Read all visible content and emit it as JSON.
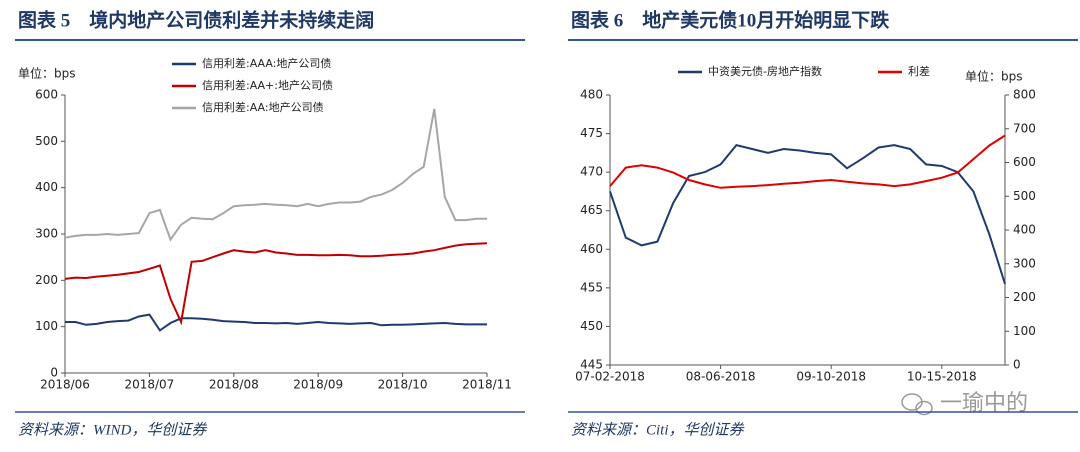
{
  "chart_data": [
    {
      "type": "line",
      "title": "图表 5　境内地产公司债利差并未持续走阔",
      "ylabel": "单位：bps",
      "source": "资料来源：WIND，华创证券",
      "categories": [
        "2018/06",
        null,
        null,
        null,
        null,
        null,
        null,
        null,
        "2018/07",
        null,
        null,
        null,
        null,
        null,
        null,
        null,
        "2018/08",
        null,
        null,
        null,
        null,
        null,
        null,
        null,
        "2018/09",
        null,
        null,
        null,
        null,
        null,
        null,
        null,
        "2018/10",
        null,
        null,
        null,
        null,
        null,
        null,
        null,
        "2018/11"
      ],
      "ylim": [
        0,
        600
      ],
      "yticks": [
        0,
        100,
        200,
        300,
        400,
        500,
        600
      ],
      "legend": "top",
      "series": [
        {
          "name": "信用利差:AAA:地产公司债",
          "color": "#1f3a6e",
          "values": [
            110,
            110,
            104,
            106,
            110,
            112,
            113,
            122,
            126,
            92,
            108,
            118,
            118,
            117,
            115,
            112,
            111,
            110,
            108,
            108,
            107,
            108,
            106,
            108,
            110,
            108,
            107,
            106,
            107,
            108,
            103,
            104,
            104,
            105,
            106,
            107,
            108,
            106,
            105,
            105,
            105
          ]
        },
        {
          "name": "信用利差:AA+:地产公司债",
          "color": "#c00000",
          "values": [
            203,
            206,
            205,
            208,
            210,
            212,
            215,
            218,
            225,
            232,
            160,
            110,
            240,
            242,
            250,
            258,
            265,
            262,
            260,
            265,
            260,
            258,
            255,
            255,
            254,
            254,
            255,
            254,
            252,
            252,
            253,
            255,
            256,
            258,
            262,
            265,
            270,
            275,
            278,
            279,
            280
          ]
        },
        {
          "name": "信用利差:AA:地产公司债",
          "color": "#a6a6a6",
          "values": [
            292,
            296,
            298,
            298,
            300,
            298,
            300,
            302,
            345,
            352,
            288,
            320,
            335,
            333,
            332,
            345,
            360,
            362,
            363,
            365,
            363,
            362,
            360,
            365,
            360,
            365,
            368,
            368,
            370,
            380,
            385,
            395,
            410,
            430,
            445,
            570,
            380,
            330,
            330,
            333,
            333
          ]
        }
      ]
    },
    {
      "type": "line",
      "title": "图表 6　地产美元债10月开始明显下跌",
      "ylabel": "单位：bps",
      "source": "资料来源：Citi，华创证券",
      "categories": [
        "07-02-2018",
        null,
        null,
        null,
        null,
        null,
        null,
        "08-06-2018",
        null,
        null,
        null,
        null,
        null,
        null,
        "09-10-2018",
        null,
        null,
        null,
        null,
        null,
        null,
        "10-15-2018",
        null,
        null,
        null,
        null
      ],
      "ylim": [
        445,
        480
      ],
      "yticks": [
        445,
        450,
        455,
        460,
        465,
        470,
        475,
        480
      ],
      "y2lim": [
        0,
        800
      ],
      "y2ticks": [
        0,
        100,
        200,
        300,
        400,
        500,
        600,
        700,
        800
      ],
      "legend": "top",
      "series": [
        {
          "name": "中资美元债-房地产指数",
          "color": "#1f3a6e",
          "values": [
            467.5,
            461.5,
            460.5,
            461,
            466,
            469.5,
            470,
            471,
            473.5,
            473,
            472.5,
            473,
            472.8,
            472.5,
            472.3,
            470.5,
            471.8,
            473.2,
            473.5,
            473,
            471,
            470.8,
            470,
            467.5,
            462,
            455.5
          ]
        },
        {
          "name": "利差",
          "color": "#e00000",
          "axis": "y2",
          "values": [
            530,
            585,
            592,
            585,
            570,
            548,
            535,
            525,
            528,
            530,
            533,
            537,
            540,
            545,
            548,
            543,
            538,
            535,
            530,
            535,
            545,
            555,
            570,
            610,
            650,
            680
          ]
        }
      ]
    }
  ],
  "watermark": "一瑜中的"
}
